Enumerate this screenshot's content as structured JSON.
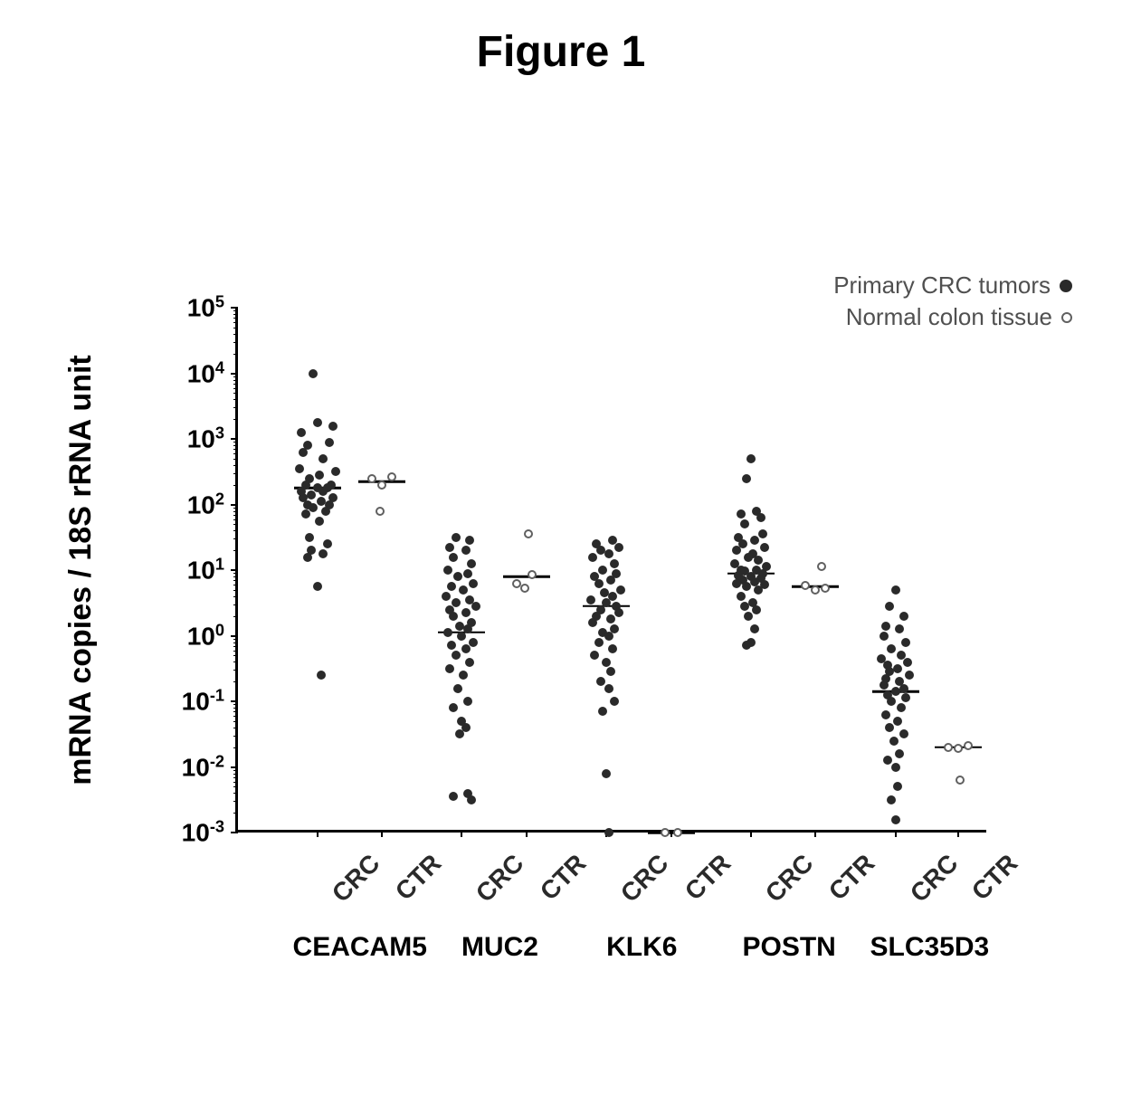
{
  "title": "Figure 1",
  "chart": {
    "type": "dot-plot-log",
    "ylabel": "mRNA copies / 18S rRNA unit",
    "ylim_exp": [
      -3,
      5
    ],
    "ytick_exp": [
      -3,
      -2,
      -1,
      0,
      1,
      2,
      3,
      4,
      5
    ],
    "xcolumns": [
      "CRC",
      "CTR",
      "CRC",
      "CTR",
      "CRC",
      "CTR",
      "CRC",
      "CTR",
      "CRC",
      "CTR"
    ],
    "gene_groups": [
      "CEACAM5",
      "MUC2",
      "KLK6",
      "POSTN",
      "SLC35D3"
    ],
    "point_size": 10,
    "open_point_size": 10,
    "marker_color": "#2a2a2a",
    "open_marker_border": "#606060",
    "background": "#ffffff",
    "axis_color": "#000000",
    "columns": {
      "ceacam5_crc": {
        "x": 0.075,
        "median_log": 2.25,
        "points_log": [
          4.0,
          3.2,
          3.1,
          3.25,
          2.9,
          2.95,
          2.8,
          2.7,
          2.5,
          2.55,
          2.45,
          2.4,
          2.3,
          2.3,
          2.25,
          2.25,
          2.2,
          2.2,
          2.15,
          2.1,
          2.1,
          2.05,
          2.0,
          2.0,
          1.95,
          1.9,
          1.85,
          1.75,
          1.5,
          1.4,
          1.3,
          1.25,
          1.2,
          0.75,
          -0.6
        ],
        "jitter": [
          -0.2,
          0.8,
          -0.8,
          0.0,
          -0.5,
          0.6,
          -0.7,
          0.3,
          0.9,
          -0.9,
          0.1,
          -0.4,
          0.7,
          -0.6,
          0.0,
          0.5,
          -0.8,
          0.3,
          -0.3,
          0.8,
          -0.7,
          0.2,
          -0.5,
          0.6,
          -0.2,
          0.4,
          -0.6,
          0.1,
          -0.4,
          0.5,
          -0.3,
          0.3,
          -0.5,
          0.0,
          0.2
        ]
      },
      "ceacam5_ctr": {
        "x": 0.168,
        "median_log": 2.35,
        "open": true,
        "points_log": [
          2.4,
          2.42,
          2.3,
          1.9
        ],
        "jitter": [
          -0.5,
          0.5,
          0.0,
          -0.1
        ]
      },
      "muc2_crc": {
        "x": 0.282,
        "median_log": 0.05,
        "points_log": [
          1.5,
          1.45,
          1.35,
          1.3,
          1.2,
          1.1,
          1.0,
          0.95,
          0.9,
          0.8,
          0.75,
          0.7,
          0.6,
          0.55,
          0.5,
          0.45,
          0.4,
          0.35,
          0.3,
          0.2,
          0.15,
          0.1,
          0.05,
          0.0,
          -0.1,
          -0.15,
          -0.2,
          -0.3,
          -0.4,
          -0.5,
          -0.6,
          -0.8,
          -1.0,
          -1.1,
          -1.3,
          -1.4,
          -1.5,
          -2.4,
          -2.45,
          -2.5
        ],
        "jitter": [
          -0.3,
          0.4,
          -0.6,
          0.2,
          -0.4,
          0.5,
          -0.7,
          0.3,
          -0.2,
          0.6,
          -0.5,
          0.1,
          -0.8,
          0.4,
          -0.3,
          0.7,
          -0.6,
          0.2,
          -0.4,
          0.5,
          -0.1,
          0.3,
          -0.7,
          0.0,
          0.6,
          -0.5,
          0.2,
          -0.3,
          0.4,
          -0.6,
          0.1,
          -0.2,
          0.3,
          -0.4,
          0.0,
          0.2,
          -0.1,
          0.3,
          -0.4,
          0.5
        ]
      },
      "muc2_ctr": {
        "x": 0.375,
        "median_log": 0.9,
        "open": true,
        "points_log": [
          1.55,
          0.93,
          0.8,
          0.72
        ],
        "jitter": [
          0.1,
          0.3,
          -0.5,
          -0.1
        ]
      },
      "klk6_crc": {
        "x": 0.49,
        "median_log": 0.45,
        "points_log": [
          1.45,
          1.4,
          1.35,
          1.3,
          1.25,
          1.2,
          1.1,
          1.0,
          0.95,
          0.9,
          0.85,
          0.8,
          0.7,
          0.65,
          0.6,
          0.55,
          0.5,
          0.45,
          0.4,
          0.35,
          0.3,
          0.25,
          0.2,
          0.1,
          0.05,
          0.0,
          -0.1,
          -0.2,
          -0.3,
          -0.4,
          -0.55,
          -0.7,
          -0.8,
          -1.0,
          -1.15,
          -2.1,
          -3.0
        ],
        "jitter": [
          0.3,
          -0.5,
          0.6,
          -0.3,
          0.1,
          -0.7,
          0.4,
          -0.2,
          0.5,
          -0.6,
          0.2,
          -0.4,
          0.7,
          -0.1,
          0.3,
          -0.8,
          0.0,
          0.5,
          -0.3,
          0.6,
          -0.5,
          0.2,
          -0.7,
          0.4,
          -0.2,
          0.1,
          -0.4,
          0.3,
          -0.6,
          0.0,
          0.2,
          -0.3,
          0.1,
          0.4,
          -0.2,
          0.0,
          0.1
        ]
      },
      "klk6_ctr": {
        "x": 0.583,
        "median_log": -3.0,
        "open": true,
        "points_log": [
          -3.0,
          -3.0
        ],
        "jitter": [
          -0.3,
          0.3
        ]
      },
      "postn_crc": {
        "x": 0.697,
        "median_log": 0.95,
        "points_log": [
          2.7,
          2.4,
          1.9,
          1.85,
          1.8,
          1.7,
          1.55,
          1.5,
          1.45,
          1.4,
          1.35,
          1.3,
          1.25,
          1.2,
          1.15,
          1.1,
          1.05,
          1.0,
          1.0,
          0.98,
          0.95,
          0.92,
          0.9,
          0.88,
          0.85,
          0.82,
          0.8,
          0.78,
          0.75,
          0.7,
          0.6,
          0.5,
          0.45,
          0.4,
          0.3,
          0.1,
          -0.1,
          -0.15
        ],
        "jitter": [
          0.0,
          -0.2,
          0.3,
          -0.5,
          0.5,
          -0.3,
          0.6,
          -0.6,
          0.2,
          -0.4,
          0.7,
          -0.7,
          0.1,
          -0.1,
          0.4,
          -0.8,
          0.8,
          -0.5,
          0.3,
          -0.3,
          0.6,
          -0.6,
          0.0,
          0.5,
          -0.4,
          0.2,
          -0.7,
          0.7,
          -0.2,
          0.4,
          -0.5,
          0.1,
          -0.3,
          0.3,
          -0.1,
          0.2,
          0.0,
          -0.2
        ]
      },
      "postn_ctr": {
        "x": 0.79,
        "median_log": 0.75,
        "open": true,
        "points_log": [
          1.05,
          0.77,
          0.73,
          0.7
        ],
        "jitter": [
          0.3,
          -0.5,
          0.5,
          0.0
        ]
      },
      "slc_crc": {
        "x": 0.905,
        "median_log": -0.85,
        "points_log": [
          0.7,
          0.45,
          0.3,
          0.15,
          0.1,
          0.0,
          -0.1,
          -0.2,
          -0.3,
          -0.35,
          -0.4,
          -0.45,
          -0.5,
          -0.55,
          -0.6,
          -0.65,
          -0.7,
          -0.75,
          -0.8,
          -0.85,
          -0.9,
          -0.95,
          -1.0,
          -1.1,
          -1.2,
          -1.3,
          -1.4,
          -1.5,
          -1.6,
          -1.8,
          -1.9,
          -2.0,
          -2.3,
          -2.5,
          -2.8
        ],
        "jitter": [
          0.0,
          -0.3,
          0.4,
          -0.5,
          0.2,
          -0.6,
          0.5,
          -0.2,
          0.3,
          -0.7,
          0.6,
          -0.4,
          0.1,
          -0.3,
          0.7,
          -0.5,
          0.2,
          -0.6,
          0.4,
          0.0,
          -0.4,
          0.5,
          -0.2,
          0.3,
          -0.5,
          0.1,
          -0.3,
          0.4,
          -0.1,
          0.2,
          -0.4,
          0.0,
          0.1,
          -0.2,
          0.0
        ]
      },
      "slc_ctr": {
        "x": 0.995,
        "median_log": -1.7,
        "open": true,
        "points_log": [
          -1.67,
          -1.7,
          -1.72,
          -2.2
        ],
        "jitter": [
          0.5,
          -0.5,
          0.0,
          0.1
        ]
      }
    },
    "legend": {
      "filled": "Primary CRC tumors",
      "open": "Normal colon tissue"
    }
  }
}
